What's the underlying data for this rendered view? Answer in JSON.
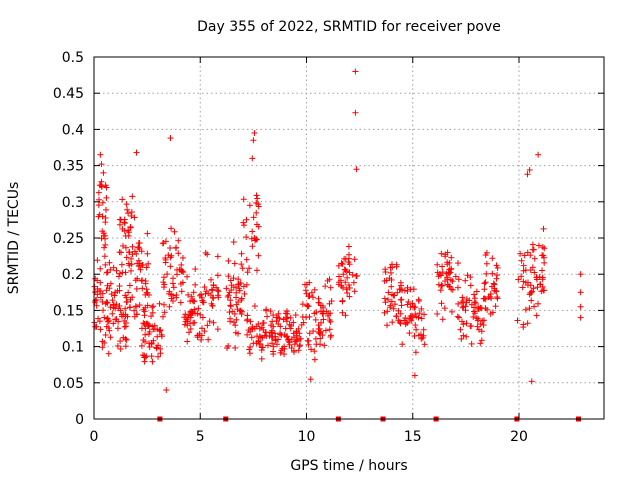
{
  "chart_data": {
    "type": "scatter",
    "title": "Day 355 of 2022, SRMTID for receiver pove",
    "xlabel": "GPS time / hours",
    "ylabel": "SRMTID / TECUs",
    "xlim": [
      0,
      24
    ],
    "ylim": [
      0,
      0.5
    ],
    "xticks": [
      "0",
      "5",
      "10",
      "15",
      "20"
    ],
    "yticks": [
      "0",
      "0.05",
      "0.1",
      "0.15",
      "0.2",
      "0.25",
      "0.3",
      "0.35",
      "0.4",
      "0.45",
      "0.5"
    ],
    "grid": true,
    "marker": "+",
    "series_color": "#ff0000",
    "zero_markers_x": [
      3.1,
      6.2,
      11.5,
      13.6,
      16.1,
      19.9,
      22.8
    ],
    "clusters": [
      {
        "x": [
          0.0,
          0.8
        ],
        "base": 0.17,
        "spread": 0.09,
        "n": 55
      },
      {
        "x": [
          0.2,
          0.6
        ],
        "base": 0.28,
        "spread": 0.08,
        "n": 25
      },
      {
        "x": [
          0.8,
          1.6
        ],
        "base": 0.15,
        "spread": 0.07,
        "n": 50
      },
      {
        "x": [
          1.2,
          2.0
        ],
        "base": 0.25,
        "spread": 0.06,
        "n": 35
      },
      {
        "x": [
          1.6,
          2.6
        ],
        "base": 0.19,
        "spread": 0.08,
        "n": 50
      },
      {
        "x": [
          2.2,
          3.2
        ],
        "base": 0.12,
        "spread": 0.06,
        "n": 55
      },
      {
        "x": [
          3.2,
          4.2
        ],
        "base": 0.2,
        "spread": 0.08,
        "n": 50
      },
      {
        "x": [
          4.2,
          5.2
        ],
        "base": 0.15,
        "spread": 0.06,
        "n": 50
      },
      {
        "x": [
          5.2,
          5.9
        ],
        "base": 0.17,
        "spread": 0.07,
        "n": 30
      },
      {
        "x": [
          6.2,
          7.3
        ],
        "base": 0.17,
        "spread": 0.08,
        "n": 55
      },
      {
        "x": [
          7.0,
          7.8
        ],
        "base": 0.25,
        "spread": 0.08,
        "n": 25
      },
      {
        "x": [
          7.2,
          8.5
        ],
        "base": 0.12,
        "spread": 0.04,
        "n": 60
      },
      {
        "x": [
          8.5,
          9.8
        ],
        "base": 0.12,
        "spread": 0.04,
        "n": 65
      },
      {
        "x": [
          9.8,
          11.2
        ],
        "base": 0.14,
        "spread": 0.06,
        "n": 70
      },
      {
        "x": [
          11.5,
          12.4
        ],
        "base": 0.19,
        "spread": 0.06,
        "n": 40
      },
      {
        "x": [
          13.6,
          14.5
        ],
        "base": 0.17,
        "spread": 0.06,
        "n": 45
      },
      {
        "x": [
          14.5,
          15.6
        ],
        "base": 0.14,
        "spread": 0.05,
        "n": 45
      },
      {
        "x": [
          16.1,
          17.2
        ],
        "base": 0.19,
        "spread": 0.06,
        "n": 50
      },
      {
        "x": [
          17.2,
          18.4
        ],
        "base": 0.15,
        "spread": 0.06,
        "n": 55
      },
      {
        "x": [
          18.4,
          19.0
        ],
        "base": 0.19,
        "spread": 0.07,
        "n": 30
      },
      {
        "x": [
          19.9,
          21.2
        ],
        "base": 0.19,
        "spread": 0.08,
        "n": 60
      }
    ],
    "outliers": [
      {
        "x": 12.3,
        "y": 0.48
      },
      {
        "x": 12.3,
        "y": 0.423
      },
      {
        "x": 12.35,
        "y": 0.345
      },
      {
        "x": 3.6,
        "y": 0.388
      },
      {
        "x": 7.55,
        "y": 0.395
      },
      {
        "x": 7.5,
        "y": 0.385
      },
      {
        "x": 7.45,
        "y": 0.36
      },
      {
        "x": 2.0,
        "y": 0.368
      },
      {
        "x": 0.3,
        "y": 0.365
      },
      {
        "x": 0.35,
        "y": 0.352
      },
      {
        "x": 20.9,
        "y": 0.365
      },
      {
        "x": 20.5,
        "y": 0.344
      },
      {
        "x": 20.4,
        "y": 0.338
      },
      {
        "x": 3.4,
        "y": 0.04
      },
      {
        "x": 10.2,
        "y": 0.055
      },
      {
        "x": 15.1,
        "y": 0.06
      },
      {
        "x": 20.6,
        "y": 0.052
      },
      {
        "x": 22.9,
        "y": 0.2
      },
      {
        "x": 22.9,
        "y": 0.175
      },
      {
        "x": 22.9,
        "y": 0.155
      },
      {
        "x": 22.9,
        "y": 0.14
      }
    ]
  }
}
